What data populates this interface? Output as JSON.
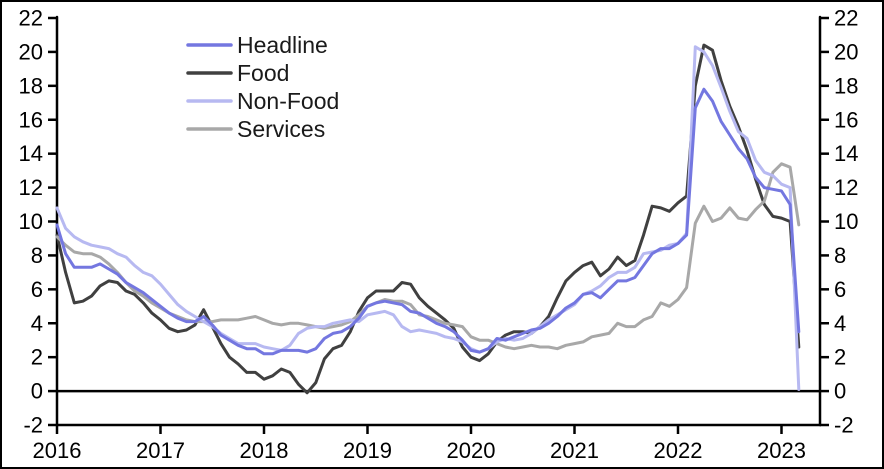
{
  "chart_data": {
    "type": "line",
    "title": "",
    "xlabel": "",
    "ylabel": "",
    "frequency": "monthly",
    "x_start": "2016-01",
    "x_end": "2023-03",
    "xticks": [
      "2016",
      "2017",
      "2018",
      "2019",
      "2020",
      "2021",
      "2022",
      "2023"
    ],
    "yticks": [
      -2,
      0,
      2,
      4,
      6,
      8,
      10,
      12,
      14,
      16,
      18,
      20,
      22
    ],
    "ylim": [
      -2,
      22
    ],
    "dual_axis": true,
    "grid": false,
    "zero_line": true,
    "legend_position": "top-left",
    "axis_color": "#000000",
    "series": [
      {
        "name": "Headline",
        "color": "#7477e0",
        "values": [
          9.8,
          8.1,
          7.3,
          7.3,
          7.3,
          7.5,
          7.2,
          6.9,
          6.4,
          6.1,
          5.8,
          5.4,
          5.0,
          4.6,
          4.3,
          4.1,
          4.1,
          4.4,
          3.9,
          3.3,
          3.0,
          2.7,
          2.5,
          2.5,
          2.2,
          2.2,
          2.4,
          2.4,
          2.4,
          2.3,
          2.5,
          3.1,
          3.4,
          3.5,
          3.8,
          4.3,
          5.0,
          5.2,
          5.3,
          5.2,
          5.1,
          4.7,
          4.6,
          4.3,
          4.0,
          3.8,
          3.5,
          3.0,
          2.4,
          2.3,
          2.5,
          3.1,
          3.0,
          3.2,
          3.4,
          3.6,
          3.7,
          4.0,
          4.4,
          4.9,
          5.2,
          5.7,
          5.8,
          5.5,
          6.0,
          6.5,
          6.5,
          6.7,
          7.4,
          8.1,
          8.4,
          8.4,
          8.7,
          9.2,
          16.7,
          17.8,
          17.1,
          15.9,
          15.1,
          14.3,
          13.7,
          12.6,
          12.0,
          11.9,
          11.8,
          11.0,
          3.5
        ]
      },
      {
        "name": "Food",
        "color": "#404040",
        "values": [
          9.2,
          7.0,
          5.2,
          5.3,
          5.6,
          6.2,
          6.5,
          6.4,
          5.9,
          5.7,
          5.2,
          4.6,
          4.2,
          3.7,
          3.5,
          3.6,
          3.9,
          4.8,
          3.8,
          2.8,
          2.0,
          1.6,
          1.1,
          1.1,
          0.7,
          0.9,
          1.3,
          1.1,
          0.4,
          -0.1,
          0.5,
          1.9,
          2.5,
          2.7,
          3.5,
          4.7,
          5.5,
          5.9,
          5.9,
          5.9,
          6.4,
          6.3,
          5.5,
          5.0,
          4.6,
          4.2,
          3.7,
          2.6,
          2.0,
          1.8,
          2.2,
          2.9,
          3.3,
          3.5,
          3.5,
          3.4,
          3.8,
          4.4,
          5.5,
          6.5,
          7.0,
          7.4,
          7.6,
          6.8,
          7.2,
          7.9,
          7.4,
          7.7,
          9.2,
          10.9,
          10.8,
          10.6,
          11.1,
          11.5,
          18.0,
          20.4,
          20.1,
          18.3,
          16.8,
          15.6,
          14.2,
          12.5,
          11.0,
          10.3,
          10.2,
          10.0,
          2.6
        ]
      },
      {
        "name": "Non-Food",
        "color": "#b7b9f1",
        "values": [
          10.8,
          9.6,
          9.1,
          8.8,
          8.6,
          8.5,
          8.4,
          8.1,
          7.9,
          7.4,
          7.0,
          6.8,
          6.3,
          5.7,
          5.1,
          4.7,
          4.4,
          4.1,
          3.8,
          3.4,
          3.1,
          2.8,
          2.8,
          2.8,
          2.6,
          2.5,
          2.4,
          2.7,
          3.4,
          3.7,
          3.8,
          3.8,
          4.0,
          4.1,
          4.2,
          4.1,
          4.5,
          4.6,
          4.7,
          4.5,
          3.8,
          3.5,
          3.6,
          3.5,
          3.4,
          3.2,
          3.1,
          2.9,
          2.5,
          2.3,
          2.5,
          2.9,
          3.1,
          3.0,
          3.1,
          3.4,
          3.8,
          4.2,
          4.5,
          4.8,
          5.1,
          5.7,
          5.9,
          6.2,
          6.7,
          7.0,
          7.0,
          7.3,
          8.1,
          8.2,
          8.3,
          8.6,
          8.7,
          9.3,
          20.3,
          20.0,
          19.2,
          17.9,
          16.5,
          15.3,
          14.9,
          13.6,
          12.9,
          12.7,
          12.2,
          12.0,
          0.1
        ]
      },
      {
        "name": "Services",
        "color": "#a8a8a8",
        "values": [
          9.1,
          8.6,
          8.2,
          8.1,
          8.1,
          7.9,
          7.5,
          7.0,
          6.4,
          5.9,
          5.6,
          5.2,
          4.9,
          4.6,
          4.4,
          4.2,
          4.1,
          4.1,
          4.1,
          4.2,
          4.2,
          4.2,
          4.3,
          4.4,
          4.2,
          4.0,
          3.9,
          4.0,
          4.0,
          3.9,
          3.8,
          3.7,
          3.8,
          3.9,
          4.1,
          4.5,
          5.0,
          5.2,
          5.4,
          5.3,
          5.3,
          5.1,
          4.5,
          4.4,
          4.2,
          4.0,
          3.9,
          3.8,
          3.2,
          3.0,
          3.0,
          2.8,
          2.6,
          2.5,
          2.6,
          2.7,
          2.6,
          2.6,
          2.5,
          2.7,
          2.8,
          2.9,
          3.2,
          3.3,
          3.4,
          4.0,
          3.8,
          3.8,
          4.2,
          4.4,
          5.2,
          5.0,
          5.4,
          6.1,
          9.9,
          10.9,
          10.0,
          10.2,
          10.8,
          10.2,
          10.1,
          10.7,
          11.2,
          12.9,
          13.4,
          13.2,
          9.8
        ]
      }
    ]
  }
}
